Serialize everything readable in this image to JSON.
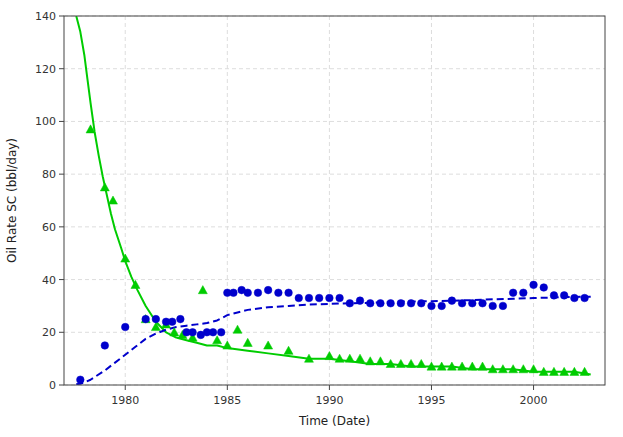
{
  "chart_data": {
    "type": "line",
    "xlabel": "Time (Date)",
    "ylabel": "Oil Rate SC (bbl/day)",
    "xlim": [
      1977.0,
      2003.5
    ],
    "ylim": [
      0,
      140
    ],
    "xticks": [
      1980,
      1985,
      1990,
      1995,
      2000
    ],
    "yticks": [
      0,
      20,
      40,
      60,
      80,
      100,
      120,
      140
    ],
    "grid": true,
    "series": [
      {
        "type": "line",
        "color": "#00cc00",
        "line_style": "solid",
        "x": [
          1977.6,
          1977.8,
          1978.0,
          1978.15,
          1978.3,
          1978.5,
          1978.7,
          1978.9,
          1979.1,
          1979.3,
          1979.5,
          1979.8,
          1980.0,
          1980.3,
          1980.6,
          1981.0,
          1981.5,
          1982.0,
          1982.5,
          1983.0,
          1983.5,
          1984.0,
          1984.5,
          1985.0,
          1986.0,
          1987.0,
          1988.0,
          1989.0,
          1990.0,
          1991.0,
          1992.0,
          1993.0,
          1994.0,
          1995.0,
          1996.0,
          1997.0,
          1998.0,
          1999.0,
          2000.0,
          2001.0,
          2002.0,
          2002.8
        ],
        "values": [
          140,
          134,
          125,
          116,
          107,
          96,
          87,
          79,
          72,
          65,
          59,
          52,
          47,
          41,
          36,
          30,
          24,
          20,
          18,
          17,
          16,
          15,
          15,
          14,
          13,
          12,
          11,
          10,
          10,
          9,
          8,
          8,
          7,
          7,
          7,
          6,
          6,
          6,
          5,
          5,
          5,
          4
        ]
      },
      {
        "type": "line",
        "color": "#0000cc",
        "line_style": "dashed",
        "x": [
          1977.6,
          1977.8,
          1978.0,
          1978.3,
          1978.6,
          1979.0,
          1979.5,
          1980.0,
          1980.5,
          1981.0,
          1981.5,
          1982.0,
          1982.5,
          1983.0,
          1983.5,
          1984.0,
          1984.5,
          1985.0,
          1985.5,
          1986.0,
          1987.0,
          1988.0,
          1989.0,
          1990.0,
          1991.0,
          1992.0,
          1993.0,
          1994.0,
          1995.0,
          1996.0,
          1997.0,
          1998.0,
          1999.0,
          2000.0,
          2001.0,
          2002.0,
          2002.8
        ],
        "values": [
          0.3,
          0.5,
          1.0,
          2.0,
          3.5,
          5.5,
          8.5,
          11.5,
          14.5,
          17.5,
          19.5,
          21.0,
          22.0,
          22.5,
          23.0,
          23.5,
          24.5,
          26.5,
          27.5,
          28.5,
          29.5,
          30.0,
          30.5,
          30.8,
          31.0,
          31.2,
          31.5,
          31.7,
          31.8,
          32.0,
          32.2,
          32.5,
          32.7,
          33.0,
          33.2,
          33.4,
          33.5
        ]
      },
      {
        "type": "scatter",
        "color": "#00cc00",
        "marker": "triangle",
        "x": [
          1978.3,
          1979.0,
          1979.4,
          1980.0,
          1980.5,
          1981.0,
          1981.5,
          1982.0,
          1982.4,
          1982.8,
          1983.3,
          1983.8,
          1984.5,
          1985.0,
          1985.5,
          1986.0,
          1987.0,
          1988.0,
          1989.0,
          1990.0,
          1990.5,
          1991.0,
          1991.5,
          1992.0,
          1992.5,
          1993.0,
          1993.5,
          1994.0,
          1994.5,
          1995.0,
          1995.5,
          1996.0,
          1996.5,
          1997.0,
          1997.5,
          1998.0,
          1998.5,
          1999.0,
          1999.5,
          2000.0,
          2000.5,
          2001.0,
          2001.5,
          2002.0,
          2002.5
        ],
        "values": [
          97,
          75,
          70,
          48,
          38,
          25,
          22,
          23,
          20,
          19,
          18,
          36,
          17,
          15,
          21,
          16,
          15,
          13,
          10,
          11,
          10,
          10,
          10,
          9,
          9,
          8,
          8,
          8,
          8,
          7,
          7,
          7,
          7,
          7,
          7,
          6,
          6,
          6,
          6,
          6,
          5,
          5,
          5,
          5,
          5
        ]
      },
      {
        "type": "scatter",
        "color": "#0000cc",
        "marker": "circle",
        "x": [
          1977.8,
          1979.0,
          1980.0,
          1981.0,
          1981.5,
          1982.0,
          1982.3,
          1982.7,
          1983.0,
          1983.3,
          1983.7,
          1984.0,
          1984.3,
          1984.7,
          1985.0,
          1985.3,
          1985.7,
          1986.0,
          1986.5,
          1987.0,
          1987.5,
          1988.0,
          1988.5,
          1989.0,
          1989.5,
          1990.0,
          1990.5,
          1991.0,
          1991.5,
          1992.0,
          1992.5,
          1993.0,
          1993.5,
          1994.0,
          1994.5,
          1995.0,
          1995.5,
          1996.0,
          1996.5,
          1997.0,
          1997.5,
          1998.0,
          1998.5,
          1999.0,
          1999.5,
          2000.0,
          2000.5,
          2001.0,
          2001.5,
          2002.0,
          2002.5
        ],
        "values": [
          2,
          15,
          22,
          25,
          25,
          24,
          24,
          25,
          20,
          20,
          19,
          20,
          20,
          20,
          35,
          35,
          36,
          35,
          35,
          36,
          35,
          35,
          33,
          33,
          33,
          33,
          33,
          31,
          32,
          31,
          31,
          31,
          31,
          31,
          31,
          30,
          30,
          32,
          31,
          31,
          31,
          30,
          30,
          35,
          35,
          38,
          37,
          34,
          34,
          33,
          33
        ]
      }
    ]
  }
}
